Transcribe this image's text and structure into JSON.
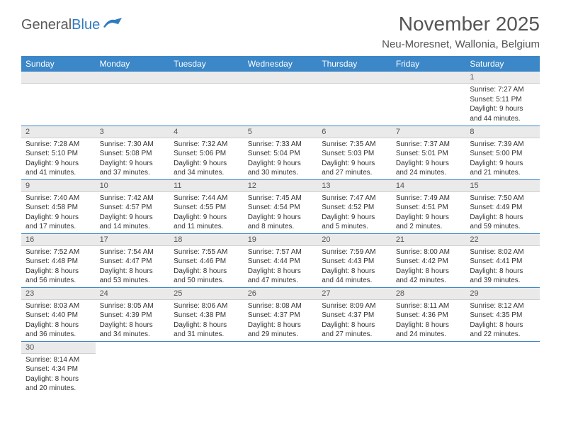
{
  "logo": {
    "word1": "General",
    "word2": "Blue"
  },
  "header": {
    "title": "November 2025",
    "location": "Neu-Moresnet, Wallonia, Belgium"
  },
  "colors": {
    "header_bg": "#3b87c8",
    "header_text": "#ffffff",
    "daynum_bg": "#eaeaea",
    "row_border": "#3b87c8",
    "text": "#333333",
    "title_text": "#555555",
    "logo_blue": "#2f7bbf"
  },
  "typography": {
    "title_fontsize_pt": 21,
    "location_fontsize_pt": 11,
    "weekday_fontsize_pt": 9,
    "daynum_fontsize_pt": 8,
    "cell_fontsize_pt": 7.5
  },
  "calendar": {
    "weekdays": [
      "Sunday",
      "Monday",
      "Tuesday",
      "Wednesday",
      "Thursday",
      "Friday",
      "Saturday"
    ],
    "first_weekday_index": 6,
    "days": [
      {
        "n": 1,
        "sunrise": "7:27 AM",
        "sunset": "5:11 PM",
        "daylight": "9 hours and 44 minutes."
      },
      {
        "n": 2,
        "sunrise": "7:28 AM",
        "sunset": "5:10 PM",
        "daylight": "9 hours and 41 minutes."
      },
      {
        "n": 3,
        "sunrise": "7:30 AM",
        "sunset": "5:08 PM",
        "daylight": "9 hours and 37 minutes."
      },
      {
        "n": 4,
        "sunrise": "7:32 AM",
        "sunset": "5:06 PM",
        "daylight": "9 hours and 34 minutes."
      },
      {
        "n": 5,
        "sunrise": "7:33 AM",
        "sunset": "5:04 PM",
        "daylight": "9 hours and 30 minutes."
      },
      {
        "n": 6,
        "sunrise": "7:35 AM",
        "sunset": "5:03 PM",
        "daylight": "9 hours and 27 minutes."
      },
      {
        "n": 7,
        "sunrise": "7:37 AM",
        "sunset": "5:01 PM",
        "daylight": "9 hours and 24 minutes."
      },
      {
        "n": 8,
        "sunrise": "7:39 AM",
        "sunset": "5:00 PM",
        "daylight": "9 hours and 21 minutes."
      },
      {
        "n": 9,
        "sunrise": "7:40 AM",
        "sunset": "4:58 PM",
        "daylight": "9 hours and 17 minutes."
      },
      {
        "n": 10,
        "sunrise": "7:42 AM",
        "sunset": "4:57 PM",
        "daylight": "9 hours and 14 minutes."
      },
      {
        "n": 11,
        "sunrise": "7:44 AM",
        "sunset": "4:55 PM",
        "daylight": "9 hours and 11 minutes."
      },
      {
        "n": 12,
        "sunrise": "7:45 AM",
        "sunset": "4:54 PM",
        "daylight": "9 hours and 8 minutes."
      },
      {
        "n": 13,
        "sunrise": "7:47 AM",
        "sunset": "4:52 PM",
        "daylight": "9 hours and 5 minutes."
      },
      {
        "n": 14,
        "sunrise": "7:49 AM",
        "sunset": "4:51 PM",
        "daylight": "9 hours and 2 minutes."
      },
      {
        "n": 15,
        "sunrise": "7:50 AM",
        "sunset": "4:49 PM",
        "daylight": "8 hours and 59 minutes."
      },
      {
        "n": 16,
        "sunrise": "7:52 AM",
        "sunset": "4:48 PM",
        "daylight": "8 hours and 56 minutes."
      },
      {
        "n": 17,
        "sunrise": "7:54 AM",
        "sunset": "4:47 PM",
        "daylight": "8 hours and 53 minutes."
      },
      {
        "n": 18,
        "sunrise": "7:55 AM",
        "sunset": "4:46 PM",
        "daylight": "8 hours and 50 minutes."
      },
      {
        "n": 19,
        "sunrise": "7:57 AM",
        "sunset": "4:44 PM",
        "daylight": "8 hours and 47 minutes."
      },
      {
        "n": 20,
        "sunrise": "7:59 AM",
        "sunset": "4:43 PM",
        "daylight": "8 hours and 44 minutes."
      },
      {
        "n": 21,
        "sunrise": "8:00 AM",
        "sunset": "4:42 PM",
        "daylight": "8 hours and 42 minutes."
      },
      {
        "n": 22,
        "sunrise": "8:02 AM",
        "sunset": "4:41 PM",
        "daylight": "8 hours and 39 minutes."
      },
      {
        "n": 23,
        "sunrise": "8:03 AM",
        "sunset": "4:40 PM",
        "daylight": "8 hours and 36 minutes."
      },
      {
        "n": 24,
        "sunrise": "8:05 AM",
        "sunset": "4:39 PM",
        "daylight": "8 hours and 34 minutes."
      },
      {
        "n": 25,
        "sunrise": "8:06 AM",
        "sunset": "4:38 PM",
        "daylight": "8 hours and 31 minutes."
      },
      {
        "n": 26,
        "sunrise": "8:08 AM",
        "sunset": "4:37 PM",
        "daylight": "8 hours and 29 minutes."
      },
      {
        "n": 27,
        "sunrise": "8:09 AM",
        "sunset": "4:37 PM",
        "daylight": "8 hours and 27 minutes."
      },
      {
        "n": 28,
        "sunrise": "8:11 AM",
        "sunset": "4:36 PM",
        "daylight": "8 hours and 24 minutes."
      },
      {
        "n": 29,
        "sunrise": "8:12 AM",
        "sunset": "4:35 PM",
        "daylight": "8 hours and 22 minutes."
      },
      {
        "n": 30,
        "sunrise": "8:14 AM",
        "sunset": "4:34 PM",
        "daylight": "8 hours and 20 minutes."
      }
    ],
    "labels": {
      "sunrise": "Sunrise:",
      "sunset": "Sunset:",
      "daylight": "Daylight:"
    }
  }
}
